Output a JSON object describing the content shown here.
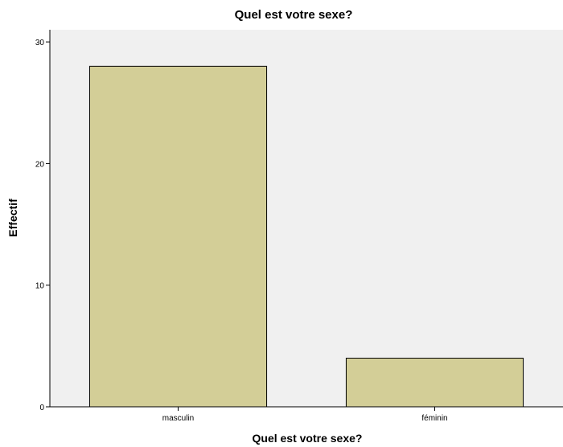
{
  "chart_data": {
    "type": "bar",
    "title": "Quel est votre sexe?",
    "xlabel": "Quel est votre sexe?",
    "ylabel": "Effectif",
    "categories": [
      "masculin",
      "féminin"
    ],
    "values": [
      28,
      4
    ],
    "ylim": [
      0,
      31
    ],
    "yticks": [
      0,
      10,
      20,
      30
    ],
    "grid": false,
    "colors": {
      "bar_fill": "#d3ce97",
      "bar_stroke": "#000000",
      "plot_background": "#f0f0f0",
      "page_background": "#ffffff"
    }
  }
}
